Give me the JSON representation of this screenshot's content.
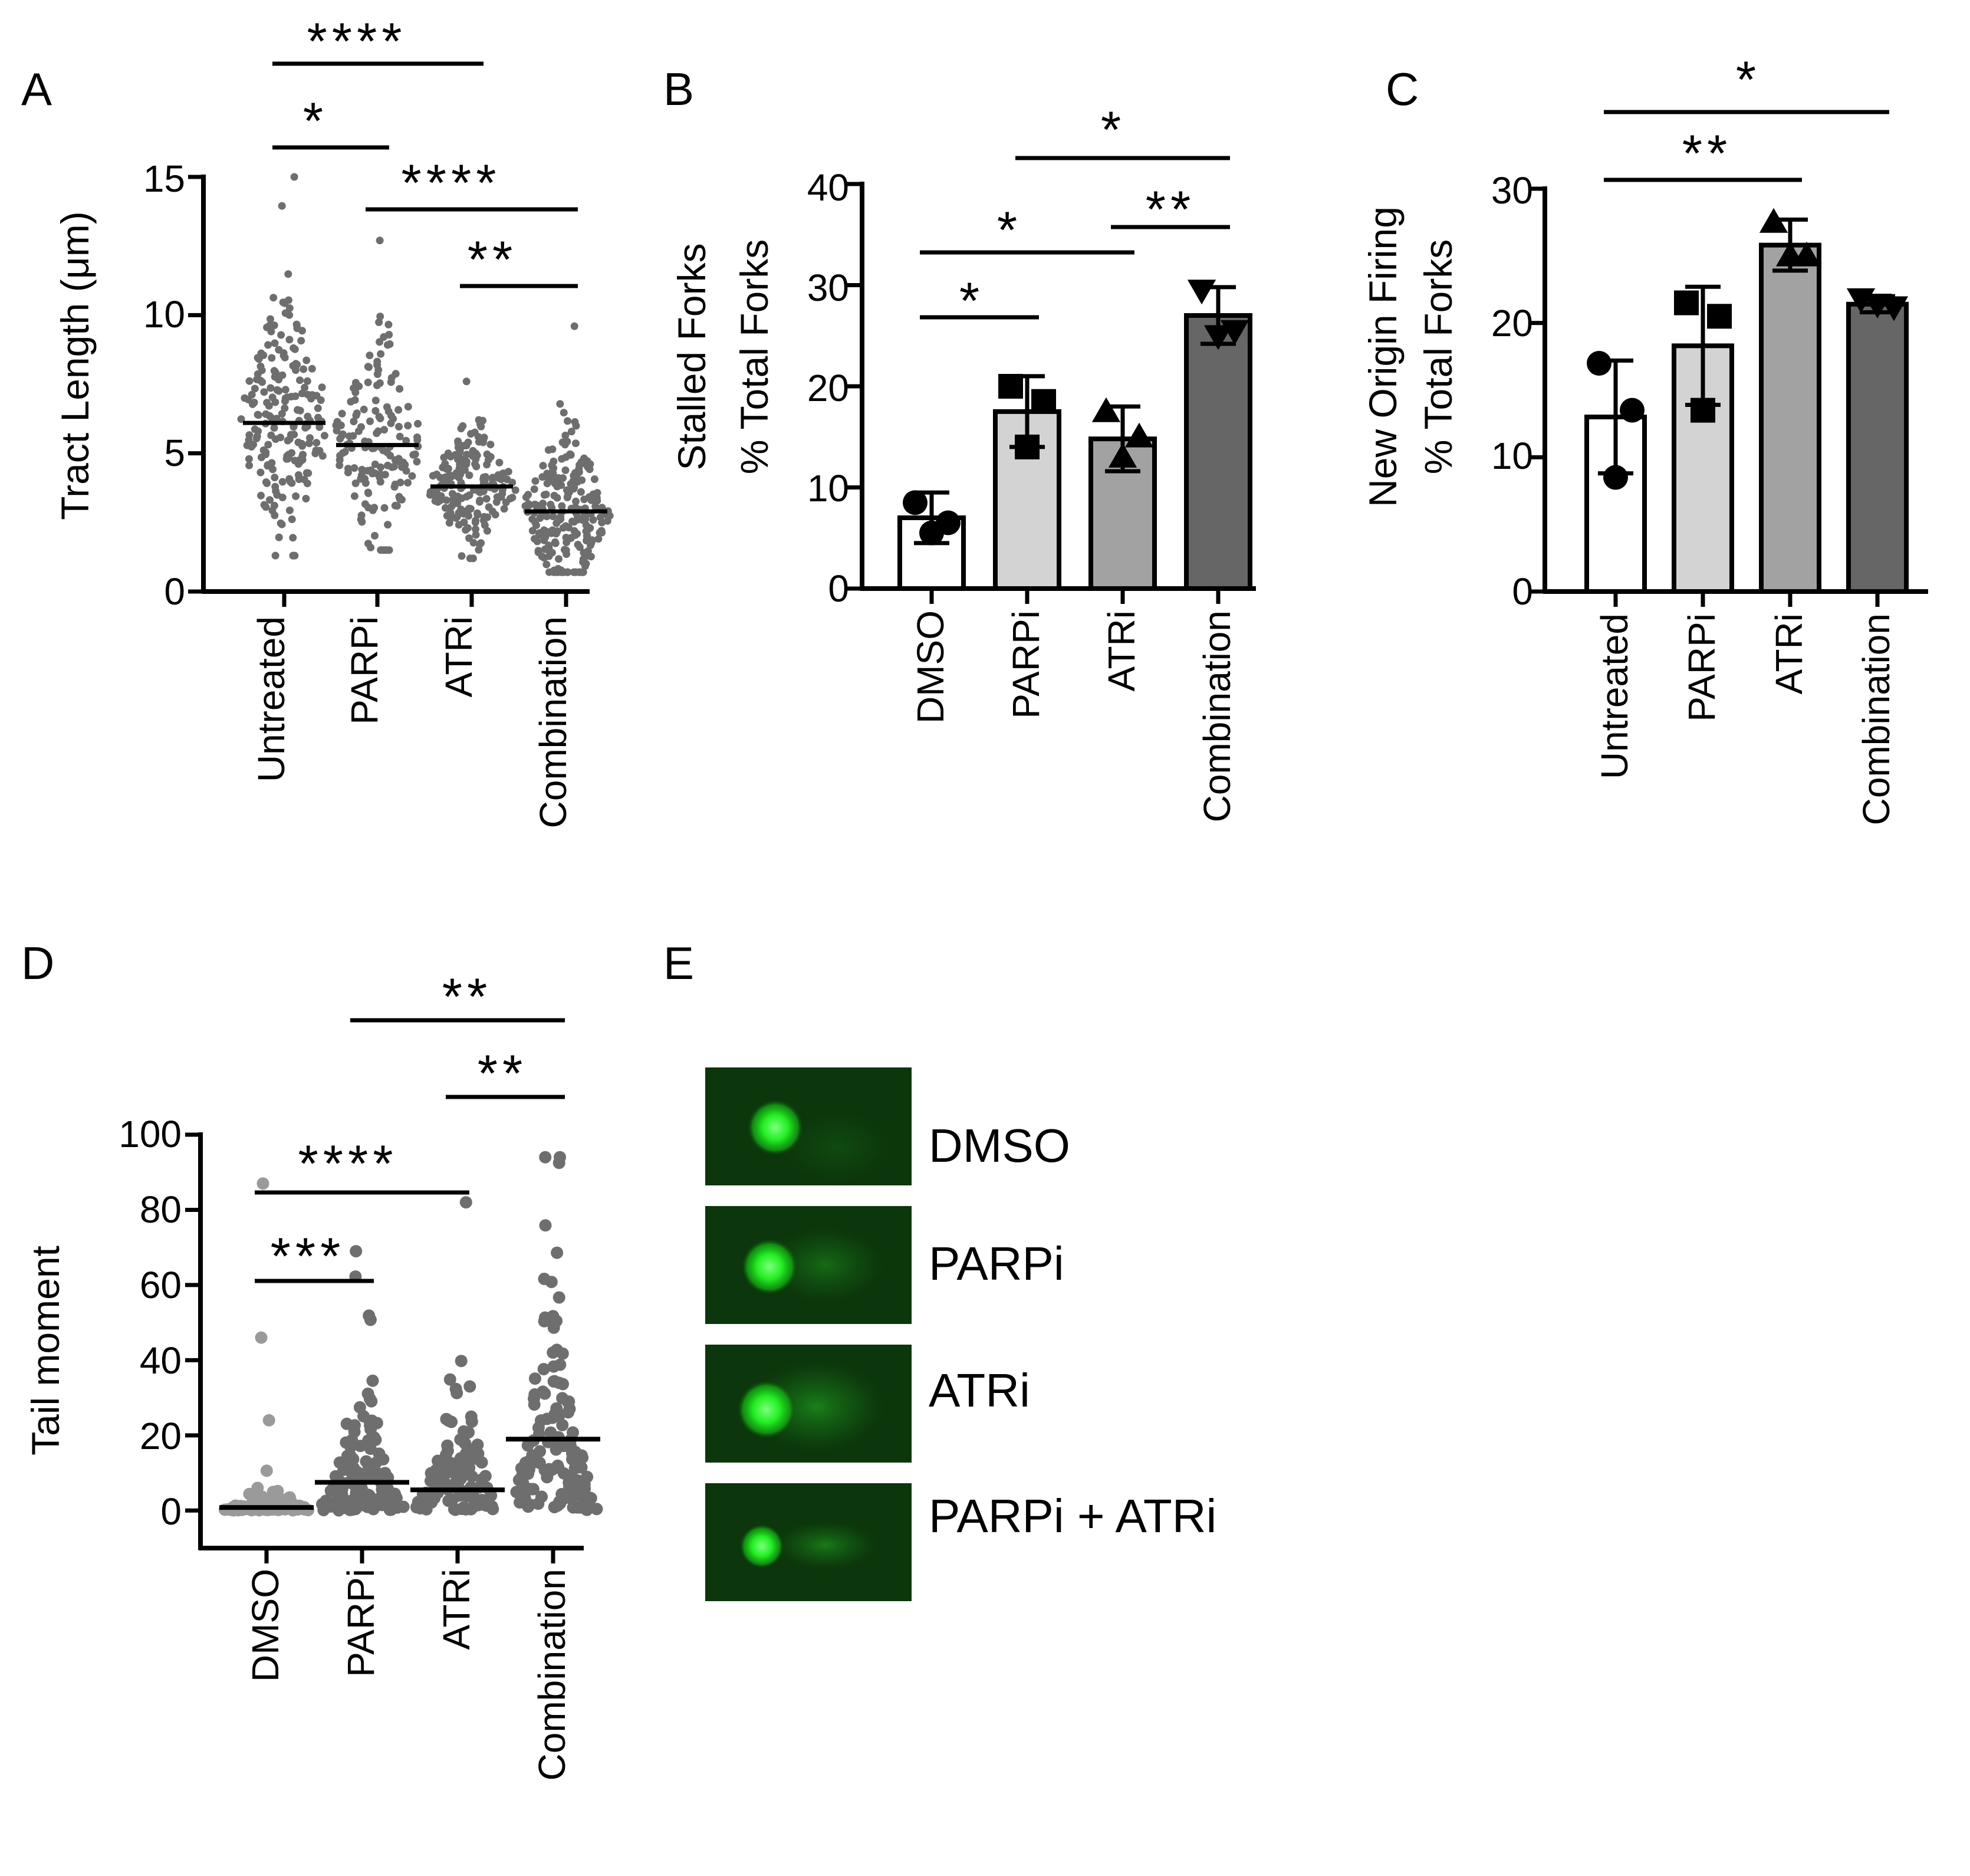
{
  "panel_labels": [
    "A",
    "B",
    "C",
    "D",
    "E"
  ],
  "chart_data": [
    {
      "panel": "A",
      "type": "scatter",
      "ylabel": "Tract Length (μm)",
      "ylim": [
        0,
        15
      ],
      "yticks": [
        0,
        5,
        10,
        15
      ],
      "categories": [
        "Untreated",
        "PARPi",
        "ATRi",
        "Combination"
      ],
      "medians": [
        6.1,
        5.3,
        3.8,
        2.9
      ],
      "value_ranges": [
        [
          1.3,
          15.0
        ],
        [
          1.5,
          12.7
        ],
        [
          1.2,
          7.6
        ],
        [
          0.7,
          9.6
        ]
      ],
      "point_color": "#6e6e6e",
      "significance": [
        {
          "from": "Untreated",
          "to": "ATRi",
          "label": "****"
        },
        {
          "from": "Untreated",
          "to": "PARPi",
          "label": "*"
        },
        {
          "from": "PARPi",
          "to": "Combination",
          "label": "****"
        },
        {
          "from": "ATRi",
          "to": "Combination",
          "label": "**"
        }
      ]
    },
    {
      "panel": "B",
      "type": "bar",
      "ylabel_lines": [
        "Stalled Forks",
        "% Total Forks"
      ],
      "ylim": [
        0,
        40
      ],
      "yticks": [
        0,
        10,
        20,
        30,
        40
      ],
      "categories": [
        "DMSO",
        "PARPi",
        "ATRi",
        "Combination"
      ],
      "values": [
        7.0,
        17.5,
        14.8,
        27.0
      ],
      "errors": [
        2.5,
        3.5,
        3.2,
        2.8
      ],
      "points": [
        [
          8.5,
          6.5,
          5.5
        ],
        [
          20.0,
          18.5,
          14.0
        ],
        [
          17.5,
          15.0,
          13.0
        ],
        [
          29.5,
          25.5,
          25.0
        ]
      ],
      "markers": [
        "circle",
        "square",
        "triangle",
        "triangle-down"
      ],
      "bar_colors": [
        "#ffffff",
        "#d3d3d3",
        "#a2a2a2",
        "#666666"
      ],
      "significance": [
        {
          "from": "PARPi",
          "to": "Combination",
          "label": "*"
        },
        {
          "from": "ATRi",
          "to": "Combination",
          "label": "**"
        },
        {
          "from": "DMSO",
          "to": "ATRi",
          "label": "*"
        },
        {
          "from": "DMSO",
          "to": "PARPi",
          "label": "*"
        }
      ]
    },
    {
      "panel": "C",
      "type": "bar",
      "ylabel_lines": [
        "New Origin Firing",
        "% Total Forks"
      ],
      "ylim": [
        0,
        30
      ],
      "yticks": [
        0,
        10,
        20,
        30
      ],
      "categories": [
        "Untreated",
        "PARPi",
        "ATRi",
        "Combination"
      ],
      "values": [
        13.0,
        18.3,
        25.8,
        21.4
      ],
      "errors": [
        4.2,
        4.4,
        1.9,
        0.6
      ],
      "points": [
        [
          17.0,
          13.5,
          8.5
        ],
        [
          21.5,
          20.5,
          13.5
        ],
        [
          27.5,
          25.0,
          25.0
        ],
        [
          21.8,
          21.2,
          21.4
        ]
      ],
      "markers": [
        "circle",
        "square",
        "triangle",
        "triangle-down"
      ],
      "bar_colors": [
        "#ffffff",
        "#d3d3d3",
        "#a2a2a2",
        "#666666"
      ],
      "significance": [
        {
          "from": "Untreated",
          "to": "Combination",
          "label": "*"
        },
        {
          "from": "Untreated",
          "to": "ATRi",
          "label": "**"
        }
      ]
    },
    {
      "panel": "D",
      "type": "scatter",
      "ylabel": "Tail moment",
      "ylim": [
        -10,
        100
      ],
      "yticks": [
        0,
        20,
        40,
        60,
        80,
        100
      ],
      "categories": [
        "DMSO",
        "PARPi",
        "ATRi",
        "Combination"
      ],
      "means": [
        0.8,
        7.5,
        5.5,
        19.0
      ],
      "value_ranges": [
        [
          0,
          87
        ],
        [
          0,
          69
        ],
        [
          0,
          82
        ],
        [
          0,
          94
        ]
      ],
      "point_colors": [
        "#9a9a9a",
        "#6e6e6e",
        "#6e6e6e",
        "#6e6e6e"
      ],
      "significance": [
        {
          "from": "PARPi",
          "to": "Combination",
          "label": "**"
        },
        {
          "from": "ATRi",
          "to": "Combination",
          "label": "**"
        },
        {
          "from": "DMSO",
          "to": "ATRi",
          "label": "****"
        },
        {
          "from": "DMSO",
          "to": "PARPi",
          "label": "***"
        }
      ]
    }
  ],
  "panel_e": {
    "images": [
      {
        "label": "DMSO",
        "tail_intensity": 0.05
      },
      {
        "label": "PARPi",
        "tail_intensity": 0.35
      },
      {
        "label": "ATRi",
        "tail_intensity": 0.55
      },
      {
        "label": "PARPi + ATRi",
        "tail_intensity": 0.5
      }
    ]
  }
}
